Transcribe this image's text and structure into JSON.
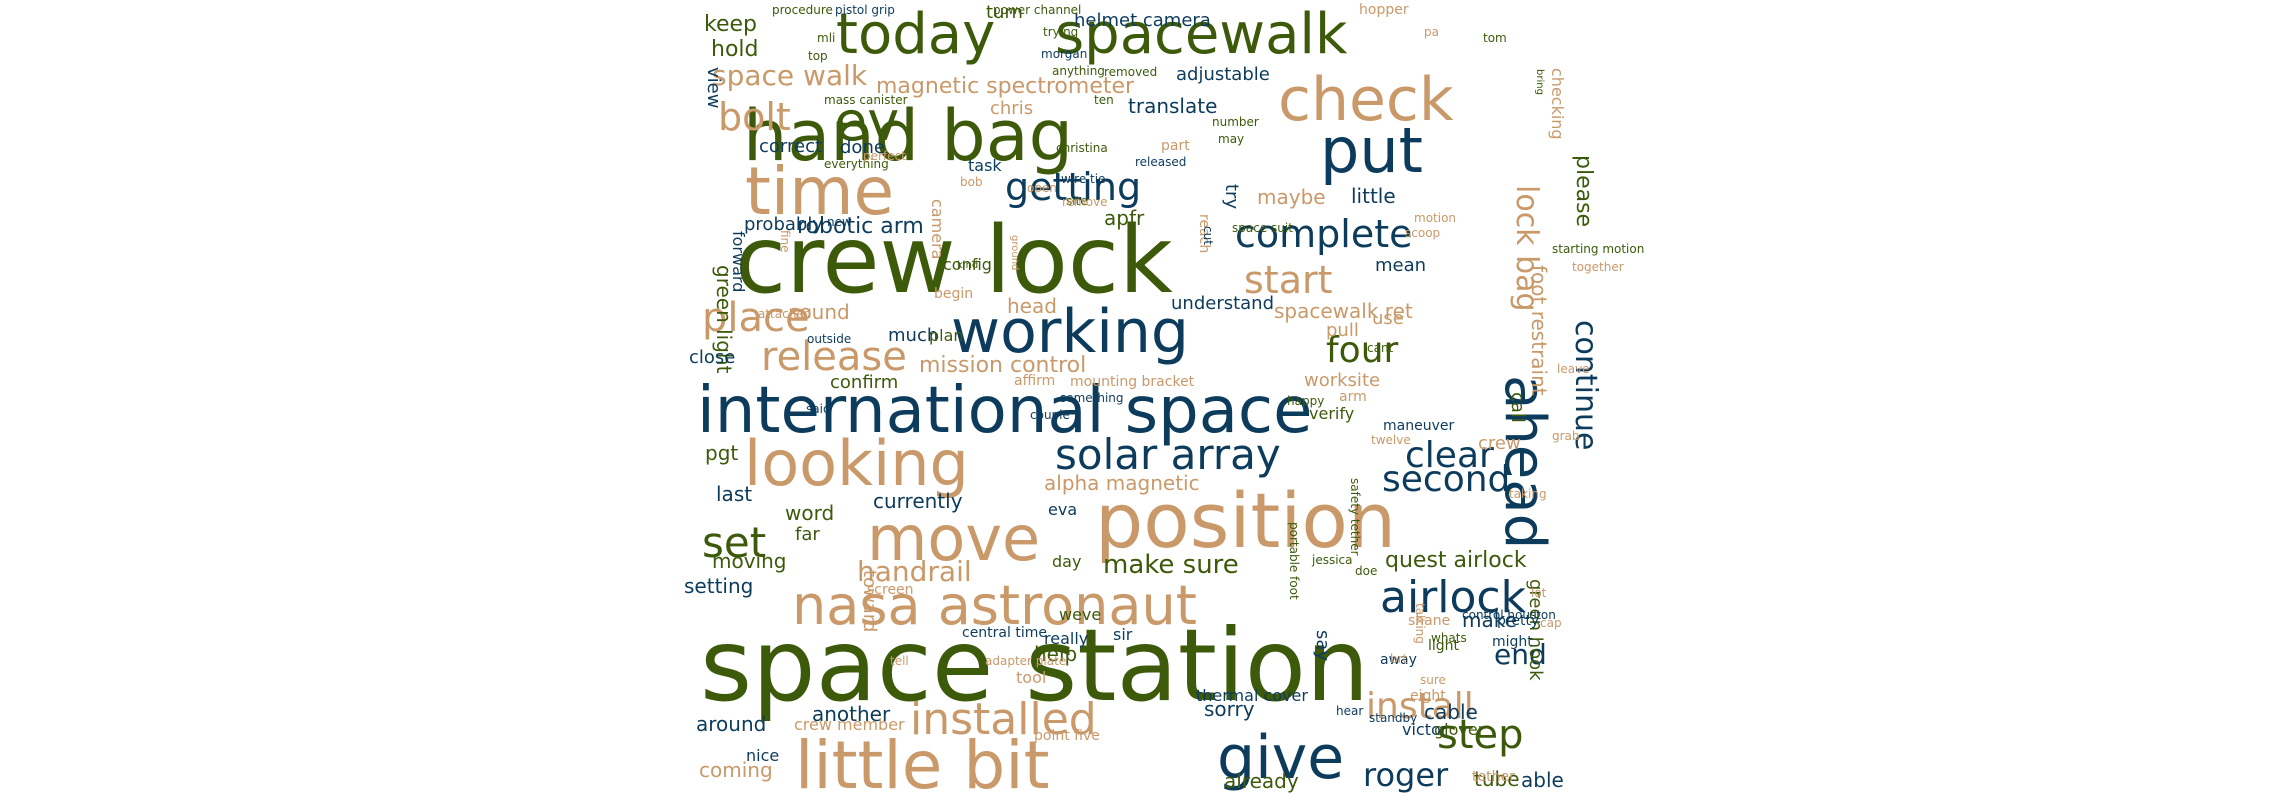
{
  "palette": {
    "green": "#3d5a0b",
    "navy": "#0d3b5c",
    "tan": "#c9996a"
  },
  "words": [
    {
      "text": "space station",
      "color": "green",
      "orient": "h"
    },
    {
      "text": "crew lock",
      "color": "green",
      "orient": "h"
    },
    {
      "text": "international space",
      "color": "navy",
      "orient": "h"
    },
    {
      "text": "position",
      "color": "tan",
      "orient": "h"
    },
    {
      "text": "little bit",
      "color": "tan",
      "orient": "h"
    },
    {
      "text": "hand bag",
      "color": "green",
      "orient": "h"
    },
    {
      "text": "today",
      "color": "green",
      "orient": "h"
    },
    {
      "text": "spacewalk",
      "color": "green",
      "orient": "h"
    },
    {
      "text": "time",
      "color": "tan",
      "orient": "h"
    },
    {
      "text": "check",
      "color": "tan",
      "orient": "h"
    },
    {
      "text": "put",
      "color": "navy",
      "orient": "h"
    },
    {
      "text": "working",
      "color": "navy",
      "orient": "h"
    },
    {
      "text": "looking",
      "color": "tan",
      "orient": "h"
    },
    {
      "text": "move",
      "color": "tan",
      "orient": "h"
    },
    {
      "text": "nasa astronaut",
      "color": "tan",
      "orient": "h"
    },
    {
      "text": "give",
      "color": "navy",
      "orient": "h"
    },
    {
      "text": "ahead",
      "color": "navy",
      "orient": "v"
    },
    {
      "text": "ev",
      "color": "green",
      "orient": "h"
    },
    {
      "text": "airlock",
      "color": "navy",
      "orient": "h"
    },
    {
      "text": "solar array",
      "color": "navy",
      "orient": "h"
    },
    {
      "text": "complete",
      "color": "navy",
      "orient": "h"
    },
    {
      "text": "installed",
      "color": "tan",
      "orient": "h"
    },
    {
      "text": "step",
      "color": "green",
      "orient": "h"
    },
    {
      "text": "start",
      "color": "tan",
      "orient": "h"
    },
    {
      "text": "place",
      "color": "tan",
      "orient": "h"
    },
    {
      "text": "bolt",
      "color": "tan",
      "orient": "h"
    },
    {
      "text": "getting",
      "color": "navy",
      "orient": "h"
    },
    {
      "text": "release",
      "color": "tan",
      "orient": "h"
    },
    {
      "text": "second",
      "color": "navy",
      "orient": "h"
    },
    {
      "text": "continue",
      "color": "navy",
      "orient": "v"
    },
    {
      "text": "four",
      "color": "green",
      "orient": "h"
    },
    {
      "text": "set",
      "color": "green",
      "orient": "h"
    },
    {
      "text": "install",
      "color": "tan",
      "orient": "h"
    },
    {
      "text": "clear",
      "color": "navy",
      "orient": "h"
    },
    {
      "text": "lock bag",
      "color": "tan",
      "orient": "v"
    },
    {
      "text": "space walk",
      "color": "tan",
      "orient": "h"
    },
    {
      "text": "roger",
      "color": "navy",
      "orient": "h"
    },
    {
      "text": "handrail",
      "color": "tan",
      "orient": "h"
    },
    {
      "text": "make sure",
      "color": "green",
      "orient": "h"
    },
    {
      "text": "end",
      "color": "navy",
      "orient": "h"
    },
    {
      "text": "magnetic spectrometer",
      "color": "tan",
      "orient": "h"
    },
    {
      "text": "robotic arm",
      "color": "navy",
      "orient": "h"
    },
    {
      "text": "mission control",
      "color": "tan",
      "orient": "h"
    },
    {
      "text": "foot restraint",
      "color": "tan",
      "orient": "v"
    },
    {
      "text": "please",
      "color": "green",
      "orient": "v"
    },
    {
      "text": "quest airlock",
      "color": "green",
      "orient": "h"
    },
    {
      "text": "alpha magnetic",
      "color": "tan",
      "orient": "h"
    },
    {
      "text": "green light",
      "color": "green",
      "orient": "v"
    },
    {
      "text": "spacewalk ret",
      "color": "tan",
      "orient": "h"
    },
    {
      "text": "translate",
      "color": "navy",
      "orient": "h"
    },
    {
      "text": "adjustable",
      "color": "navy",
      "orient": "h"
    },
    {
      "text": "keep",
      "color": "green",
      "orient": "h"
    },
    {
      "text": "hold",
      "color": "green",
      "orient": "h"
    },
    {
      "text": "turn",
      "color": "green",
      "orient": "h"
    },
    {
      "text": "helmet camera",
      "color": "navy",
      "orient": "h"
    },
    {
      "text": "correct",
      "color": "navy",
      "orient": "h"
    },
    {
      "text": "done",
      "color": "navy",
      "orient": "h"
    },
    {
      "text": "apfr",
      "color": "green",
      "orient": "h"
    },
    {
      "text": "maybe",
      "color": "tan",
      "orient": "h"
    },
    {
      "text": "little",
      "color": "navy",
      "orient": "h"
    },
    {
      "text": "sound",
      "color": "tan",
      "orient": "h"
    },
    {
      "text": "head",
      "color": "tan",
      "orient": "h"
    },
    {
      "text": "understand",
      "color": "navy",
      "orient": "h"
    },
    {
      "text": "worksite",
      "color": "tan",
      "orient": "h"
    },
    {
      "text": "pull",
      "color": "tan",
      "orient": "h"
    },
    {
      "text": "mean",
      "color": "navy",
      "orient": "h"
    },
    {
      "text": "task",
      "color": "navy",
      "orient": "h"
    },
    {
      "text": "forward",
      "color": "navy",
      "orient": "v"
    },
    {
      "text": "probably",
      "color": "navy",
      "orient": "h"
    },
    {
      "text": "currently",
      "color": "navy",
      "orient": "h"
    },
    {
      "text": "confirm",
      "color": "green",
      "orient": "h"
    },
    {
      "text": "close",
      "color": "navy",
      "orient": "h"
    },
    {
      "text": "much",
      "color": "navy",
      "orient": "h"
    },
    {
      "text": "plan",
      "color": "green",
      "orient": "h"
    },
    {
      "text": "config",
      "color": "green",
      "orient": "h"
    },
    {
      "text": "last",
      "color": "navy",
      "orient": "h"
    },
    {
      "text": "word",
      "color": "green",
      "orient": "h"
    },
    {
      "text": "pgt",
      "color": "green",
      "orient": "h"
    },
    {
      "text": "far",
      "color": "green",
      "orient": "h"
    },
    {
      "text": "moving",
      "color": "green",
      "orient": "h"
    },
    {
      "text": "setting",
      "color": "navy",
      "orient": "h"
    },
    {
      "text": "toward",
      "color": "tan",
      "orient": "v"
    },
    {
      "text": "help",
      "color": "green",
      "orient": "h"
    },
    {
      "text": "another",
      "color": "navy",
      "orient": "h"
    },
    {
      "text": "around",
      "color": "navy",
      "orient": "h"
    },
    {
      "text": "coming",
      "color": "tan",
      "orient": "h"
    },
    {
      "text": "sorry",
      "color": "navy",
      "orient": "h"
    },
    {
      "text": "already",
      "color": "green",
      "orient": "h"
    },
    {
      "text": "able",
      "color": "navy",
      "orient": "h"
    },
    {
      "text": "tube",
      "color": "green",
      "orient": "h"
    },
    {
      "text": "cable",
      "color": "navy",
      "orient": "h"
    },
    {
      "text": "make",
      "color": "navy",
      "orient": "h"
    },
    {
      "text": "say",
      "color": "navy",
      "orient": "v"
    },
    {
      "text": "try",
      "color": "navy",
      "orient": "v"
    },
    {
      "text": "use",
      "color": "tan",
      "orient": "h"
    },
    {
      "text": "view",
      "color": "navy",
      "orient": "v"
    },
    {
      "text": "crew",
      "color": "tan",
      "orient": "h"
    },
    {
      "text": "green hook",
      "color": "green",
      "orient": "v"
    },
    {
      "text": "call",
      "color": "green",
      "orient": "v"
    },
    {
      "text": "verify",
      "color": "green",
      "orient": "h"
    },
    {
      "text": "checking",
      "color": "tan",
      "orient": "v"
    },
    {
      "text": "chris",
      "color": "tan",
      "orient": "h"
    },
    {
      "text": "really",
      "color": "navy",
      "orient": "h"
    },
    {
      "text": "weve",
      "color": "green",
      "orient": "h"
    },
    {
      "text": "tool",
      "color": "tan",
      "orient": "h"
    },
    {
      "text": "nice",
      "color": "navy",
      "orient": "h"
    },
    {
      "text": "sir",
      "color": "navy",
      "orient": "h"
    },
    {
      "text": "day",
      "color": "green",
      "orient": "h"
    },
    {
      "text": "eva",
      "color": "navy",
      "orient": "h"
    },
    {
      "text": "victor",
      "color": "navy",
      "orient": "h"
    },
    {
      "text": "glover",
      "color": "green",
      "orient": "h"
    },
    {
      "text": "thermal cover",
      "color": "navy",
      "orient": "h"
    },
    {
      "text": "crew member",
      "color": "tan",
      "orient": "h"
    },
    {
      "text": "point five",
      "color": "tan",
      "orient": "h"
    },
    {
      "text": "affirm",
      "color": "tan",
      "orient": "h"
    },
    {
      "text": "arm",
      "color": "tan",
      "orient": "h"
    },
    {
      "text": "mounting bracket",
      "color": "tan",
      "orient": "h"
    },
    {
      "text": "pretty",
      "color": "navy",
      "orient": "h"
    },
    {
      "text": "might",
      "color": "navy",
      "orient": "h"
    },
    {
      "text": "shane",
      "color": "tan",
      "orient": "h"
    },
    {
      "text": "eight",
      "color": "tan",
      "orient": "h"
    },
    {
      "text": "tether",
      "color": "tan",
      "orient": "h"
    },
    {
      "text": "camera",
      "color": "tan",
      "orient": "v"
    },
    {
      "text": "part",
      "color": "tan",
      "orient": "h"
    },
    {
      "text": "begin",
      "color": "tan",
      "orient": "h"
    },
    {
      "text": "procedure",
      "color": "green",
      "orient": "h"
    },
    {
      "text": "pistol grip",
      "color": "navy",
      "orient": "h"
    },
    {
      "text": "power channel",
      "color": "green",
      "orient": "h"
    },
    {
      "text": "hopper",
      "color": "tan",
      "orient": "h"
    },
    {
      "text": "trying",
      "color": "green",
      "orient": "h"
    },
    {
      "text": "morgan",
      "color": "navy",
      "orient": "h"
    },
    {
      "text": "mli",
      "color": "green",
      "orient": "h"
    },
    {
      "text": "top",
      "color": "green",
      "orient": "h"
    },
    {
      "text": "anything",
      "color": "green",
      "orient": "h"
    },
    {
      "text": "removed",
      "color": "green",
      "orient": "h"
    },
    {
      "text": "pa",
      "color": "tan",
      "orient": "h"
    },
    {
      "text": "tom",
      "color": "green",
      "orient": "h"
    },
    {
      "text": "bring",
      "color": "green",
      "orient": "v"
    },
    {
      "text": "mass canister",
      "color": "green",
      "orient": "h"
    },
    {
      "text": "ten",
      "color": "green",
      "orient": "h"
    },
    {
      "text": "number",
      "color": "green",
      "orient": "h"
    },
    {
      "text": "may",
      "color": "green",
      "orient": "h"
    },
    {
      "text": "christina",
      "color": "green",
      "orient": "h"
    },
    {
      "text": "released",
      "color": "navy",
      "orient": "h"
    },
    {
      "text": "everything",
      "color": "green",
      "orient": "h"
    },
    {
      "text": "bob",
      "color": "tan",
      "orient": "h"
    },
    {
      "text": "site",
      "color": "green",
      "orient": "h"
    },
    {
      "text": "wire tie",
      "color": "navy",
      "orient": "h"
    },
    {
      "text": "fine",
      "color": "tan",
      "orient": "v"
    },
    {
      "text": "remove",
      "color": "tan",
      "orient": "h"
    },
    {
      "text": "reach",
      "color": "tan",
      "orient": "v"
    },
    {
      "text": "cut",
      "color": "navy",
      "orient": "v"
    },
    {
      "text": "perfect",
      "color": "tan",
      "orient": "h"
    },
    {
      "text": "open",
      "color": "tan",
      "orient": "h"
    },
    {
      "text": "ground",
      "color": "tan",
      "orient": "v"
    },
    {
      "text": "kind",
      "color": "green",
      "orient": "h"
    },
    {
      "text": "new",
      "color": "navy",
      "orient": "h"
    },
    {
      "text": "space suit",
      "color": "green",
      "orient": "h"
    },
    {
      "text": "scoop",
      "color": "tan",
      "orient": "h"
    },
    {
      "text": "motion",
      "color": "tan",
      "orient": "h"
    },
    {
      "text": "attached",
      "color": "tan",
      "orient": "h"
    },
    {
      "text": "outside",
      "color": "navy",
      "orient": "h"
    },
    {
      "text": "happy",
      "color": "green",
      "orient": "h"
    },
    {
      "text": "cant",
      "color": "green",
      "orient": "h"
    },
    {
      "text": "leave",
      "color": "tan",
      "orient": "h"
    },
    {
      "text": "something",
      "color": "navy",
      "orient": "h"
    },
    {
      "text": "said",
      "color": "navy",
      "orient": "h"
    },
    {
      "text": "couple",
      "color": "navy",
      "orient": "h"
    },
    {
      "text": "grab",
      "color": "tan",
      "orient": "h"
    },
    {
      "text": "maneuver",
      "color": "navy",
      "orient": "h"
    },
    {
      "text": "starting motion",
      "color": "green",
      "orient": "h"
    },
    {
      "text": "together",
      "color": "tan",
      "orient": "h"
    },
    {
      "text": "twelve",
      "color": "tan",
      "orient": "h"
    },
    {
      "text": "safety tether",
      "color": "green",
      "orient": "v"
    },
    {
      "text": "portable foot",
      "color": "green",
      "orient": "v"
    },
    {
      "text": "jessica",
      "color": "green",
      "orient": "h"
    },
    {
      "text": "doe",
      "color": "green",
      "orient": "h"
    },
    {
      "text": "lot",
      "color": "tan",
      "orient": "h"
    },
    {
      "text": "cap",
      "color": "tan",
      "orient": "h"
    },
    {
      "text": "taking",
      "color": "tan",
      "orient": "h"
    },
    {
      "text": "away",
      "color": "navy",
      "orient": "h"
    },
    {
      "text": "light",
      "color": "green",
      "orient": "h"
    },
    {
      "text": "sure",
      "color": "tan",
      "orient": "h"
    },
    {
      "text": "control houston",
      "color": "navy",
      "orient": "h"
    },
    {
      "text": "tell",
      "color": "tan",
      "orient": "h"
    },
    {
      "text": "adapter plate",
      "color": "tan",
      "orient": "h"
    },
    {
      "text": "brt",
      "color": "tan",
      "orient": "h"
    },
    {
      "text": "talking",
      "color": "tan",
      "orient": "v"
    },
    {
      "text": "whats",
      "color": "green",
      "orient": "h"
    },
    {
      "text": "hear",
      "color": "navy",
      "orient": "h"
    },
    {
      "text": "standby",
      "color": "navy",
      "orient": "h"
    },
    {
      "text": "screen",
      "color": "tan",
      "orient": "h"
    },
    {
      "text": "central time",
      "color": "navy",
      "orient": "h"
    },
    {
      "text": "retrieve",
      "color": "navy",
      "orient": "h"
    },
    {
      "text": "reminder",
      "color": "navy",
      "orient": "h"
    },
    {
      "text": "inside",
      "color": "navy",
      "orient": "h"
    },
    {
      "text": "grip tool",
      "color": "tan",
      "orient": "h"
    },
    {
      "text": "minute today",
      "color": "tan",
      "orient": "v"
    },
    {
      "text": "space walker",
      "color": "navy",
      "orient": "h"
    },
    {
      "text": "body",
      "color": "green",
      "orient": "h"
    }
  ]
}
